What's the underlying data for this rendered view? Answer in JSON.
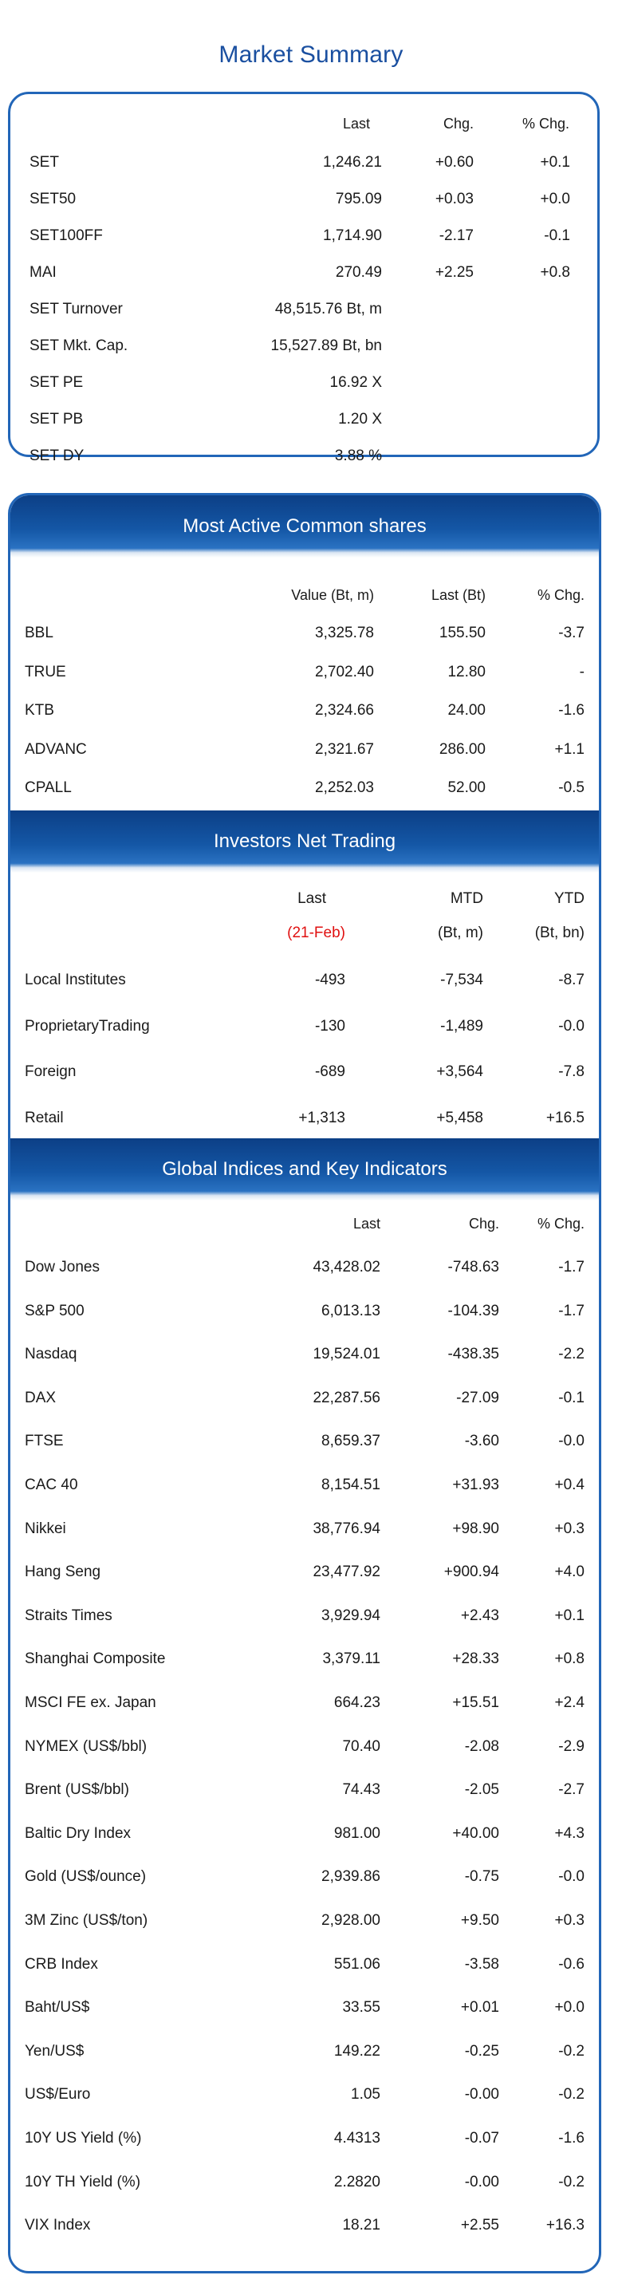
{
  "page_title": "Market Summary",
  "market_summary": {
    "headers": [
      "Last",
      "Chg.",
      "% Chg."
    ],
    "rows": [
      {
        "name": "SET",
        "last": "1,246.21",
        "chg": "+0.60",
        "pct": "+0.1"
      },
      {
        "name": "SET50",
        "last": "795.09",
        "chg": "+0.03",
        "pct": "+0.0"
      },
      {
        "name": "SET100FF",
        "last": "1,714.90",
        "chg": "-2.17",
        "pct": "-0.1"
      },
      {
        "name": "MAI",
        "last": "270.49",
        "chg": "+2.25",
        "pct": "+0.8"
      },
      {
        "name": "SET Turnover",
        "last": "48,515.76 Bt, m",
        "chg": "",
        "pct": ""
      },
      {
        "name": "SET Mkt. Cap.",
        "last": "15,527.89 Bt, bn",
        "chg": "",
        "pct": ""
      },
      {
        "name": "SET PE",
        "last": "16.92 X",
        "chg": "",
        "pct": ""
      },
      {
        "name": "SET PB",
        "last": "1.20 X",
        "chg": "",
        "pct": ""
      },
      {
        "name": "SET DY",
        "last": "3.88 %",
        "chg": "",
        "pct": ""
      }
    ]
  },
  "most_active": {
    "title": "Most Active Common shares",
    "headers": [
      "Value (Bt, m)",
      "Last (Bt)",
      "% Chg."
    ],
    "rows": [
      {
        "name": "BBL",
        "value": "3,325.78",
        "last": "155.50",
        "pct": "-3.7"
      },
      {
        "name": "TRUE",
        "value": "2,702.40",
        "last": "12.80",
        "pct": "-"
      },
      {
        "name": "KTB",
        "value": "2,324.66",
        "last": "24.00",
        "pct": "-1.6"
      },
      {
        "name": "ADVANC",
        "value": "2,321.67",
        "last": "286.00",
        "pct": "+1.1"
      },
      {
        "name": "CPALL",
        "value": "2,252.03",
        "last": "52.00",
        "pct": "-0.5"
      }
    ]
  },
  "investors": {
    "title": "Investors Net Trading",
    "headers": [
      "Last",
      "MTD",
      "YTD"
    ],
    "subheaders": [
      "(21-Feb)",
      "(Bt, m)",
      "(Bt, bn)"
    ],
    "highlight_color": "#e01010",
    "rows": [
      {
        "name": "Local Institutes",
        "last": "-493",
        "mtd": "-7,534",
        "ytd": "-8.7"
      },
      {
        "name": "ProprietaryTrading",
        "last": "-130",
        "mtd": "-1,489",
        "ytd": "-0.0"
      },
      {
        "name": "Foreign",
        "last": "-689",
        "mtd": "+3,564",
        "ytd": "-7.8"
      },
      {
        "name": "Retail",
        "last": "+1,313",
        "mtd": "+5,458",
        "ytd": "+16.5"
      }
    ]
  },
  "global": {
    "title": "Global Indices and Key Indicators",
    "headers": [
      "Last",
      "Chg.",
      "% Chg."
    ],
    "rows": [
      {
        "name": "Dow Jones",
        "last": "43,428.02",
        "chg": "-748.63",
        "pct": "-1.7"
      },
      {
        "name": "S&P 500",
        "last": "6,013.13",
        "chg": "-104.39",
        "pct": "-1.7"
      },
      {
        "name": "Nasdaq",
        "last": "19,524.01",
        "chg": "-438.35",
        "pct": "-2.2"
      },
      {
        "name": "DAX",
        "last": "22,287.56",
        "chg": "-27.09",
        "pct": "-0.1"
      },
      {
        "name": "FTSE",
        "last": "8,659.37",
        "chg": "-3.60",
        "pct": "-0.0"
      },
      {
        "name": "CAC 40",
        "last": "8,154.51",
        "chg": "+31.93",
        "pct": "+0.4"
      },
      {
        "name": "Nikkei",
        "last": "38,776.94",
        "chg": "+98.90",
        "pct": "+0.3"
      },
      {
        "name": "Hang Seng",
        "last": "23,477.92",
        "chg": "+900.94",
        "pct": "+4.0"
      },
      {
        "name": "Straits Times",
        "last": "3,929.94",
        "chg": "+2.43",
        "pct": "+0.1"
      },
      {
        "name": "Shanghai Composite",
        "last": "3,379.11",
        "chg": "+28.33",
        "pct": "+0.8"
      },
      {
        "name": "MSCI FE ex. Japan",
        "last": "664.23",
        "chg": "+15.51",
        "pct": "+2.4"
      },
      {
        "name": "NYMEX (US$/bbl)",
        "last": "70.40",
        "chg": "-2.08",
        "pct": "-2.9"
      },
      {
        "name": "Brent (US$/bbl)",
        "last": "74.43",
        "chg": "-2.05",
        "pct": "-2.7"
      },
      {
        "name": "Baltic Dry Index",
        "last": "981.00",
        "chg": "+40.00",
        "pct": "+4.3"
      },
      {
        "name": "Gold (US$/ounce)",
        "last": "2,939.86",
        "chg": "-0.75",
        "pct": "-0.0"
      },
      {
        "name": "3M Zinc (US$/ton)",
        "last": "2,928.00",
        "chg": "+9.50",
        "pct": "+0.3"
      },
      {
        "name": "CRB Index",
        "last": "551.06",
        "chg": "-3.58",
        "pct": "-0.6"
      },
      {
        "name": "Baht/US$",
        "last": "33.55",
        "chg": "+0.01",
        "pct": "+0.0"
      },
      {
        "name": "Yen/US$",
        "last": "149.22",
        "chg": "-0.25",
        "pct": "-0.2"
      },
      {
        "name": "US$/Euro",
        "last": "1.05",
        "chg": "-0.00",
        "pct": "-0.2"
      },
      {
        "name": "10Y US Yield (%)",
        "last": "4.4313",
        "chg": "-0.07",
        "pct": "-1.6"
      },
      {
        "name": "10Y TH Yield (%)",
        "last": "2.2820",
        "chg": "-0.00",
        "pct": "-0.2"
      },
      {
        "name": "VIX Index",
        "last": "18.21",
        "chg": "+2.55",
        "pct": "+16.3"
      }
    ]
  }
}
